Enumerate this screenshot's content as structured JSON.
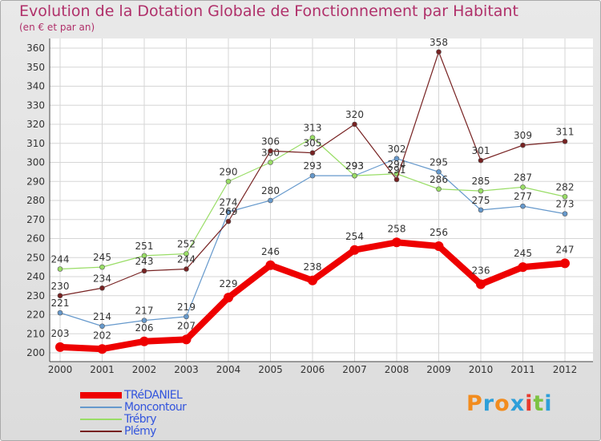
{
  "title": "Evolution de la Dotation Globale de Fonctionnement par Habitant",
  "subtitle": "(en € et par an)",
  "brand": {
    "text": "Proxiti",
    "colors": [
      "#f28c1e",
      "#2d9fd9",
      "#f28c1e",
      "#2d9fd9",
      "#e83a2e",
      "#7cc242",
      "#2d9fd9"
    ]
  },
  "chart_data": {
    "type": "line",
    "x": [
      2000,
      2001,
      2002,
      2003,
      2004,
      2005,
      2006,
      2007,
      2008,
      2009,
      2010,
      2011,
      2012
    ],
    "ylim": [
      200,
      360
    ],
    "yticks": [
      200,
      210,
      220,
      230,
      240,
      250,
      260,
      270,
      280,
      290,
      300,
      310,
      320,
      330,
      340,
      350,
      360
    ],
    "grid": true,
    "legend_position": "bottom-left",
    "series": [
      {
        "name": "TRéDANIEL",
        "color": "#ee0000",
        "width": 8,
        "values": [
          203,
          202,
          206,
          207,
          229,
          246,
          238,
          254,
          258,
          256,
          236,
          245,
          247
        ]
      },
      {
        "name": "Moncontour",
        "color": "#6699cc",
        "width": 1.2,
        "values": [
          221,
          214,
          217,
          219,
          274,
          280,
          293,
          293,
          302,
          295,
          275,
          277,
          273
        ]
      },
      {
        "name": "Trébry",
        "color": "#99dd66",
        "width": 1.2,
        "values": [
          244,
          245,
          251,
          252,
          290,
          300,
          313,
          293,
          294,
          286,
          285,
          287,
          282
        ]
      },
      {
        "name": "Plémy",
        "color": "#772222",
        "width": 1.2,
        "values": [
          230,
          234,
          243,
          244,
          269,
          306,
          305,
          320,
          291,
          358,
          301,
          309,
          311
        ]
      }
    ]
  }
}
